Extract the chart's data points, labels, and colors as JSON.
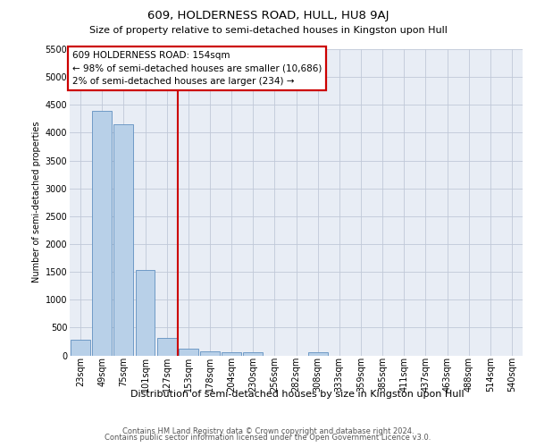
{
  "title": "609, HOLDERNESS ROAD, HULL, HU8 9AJ",
  "subtitle": "Size of property relative to semi-detached houses in Kingston upon Hull",
  "xlabel": "Distribution of semi-detached houses by size in Kingston upon Hull",
  "ylabel": "Number of semi-detached properties",
  "footer1": "Contains HM Land Registry data © Crown copyright and database right 2024.",
  "footer2": "Contains public sector information licensed under the Open Government Licence v3.0.",
  "annotation_title": "609 HOLDERNESS ROAD: 154sqm",
  "annotation_line1": "← 98% of semi-detached houses are smaller (10,686)",
  "annotation_line2": "2% of semi-detached houses are larger (234) →",
  "categories": [
    "23sqm",
    "49sqm",
    "75sqm",
    "101sqm",
    "127sqm",
    "153sqm",
    "178sqm",
    "204sqm",
    "230sqm",
    "256sqm",
    "282sqm",
    "308sqm",
    "333sqm",
    "359sqm",
    "385sqm",
    "411sqm",
    "437sqm",
    "463sqm",
    "488sqm",
    "514sqm",
    "540sqm"
  ],
  "values": [
    280,
    4400,
    4150,
    1530,
    310,
    120,
    70,
    60,
    58,
    0,
    0,
    62,
    0,
    0,
    0,
    0,
    0,
    0,
    0,
    0,
    0
  ],
  "bar_color": "#b8d0e8",
  "bar_edge_color": "#6090c0",
  "marker_index": 5,
  "marker_color": "#cc0000",
  "ylim_max": 5500,
  "ytick_step": 500,
  "bg_color": "#e8edf5",
  "grid_color": "#c0c8d8",
  "annotation_box_color": "#cc0000",
  "title_fontsize": 9.5,
  "subtitle_fontsize": 8.0,
  "ylabel_fontsize": 7.0,
  "xlabel_fontsize": 8.0,
  "tick_fontsize": 7.0,
  "footer_fontsize": 6.0,
  "annot_fontsize": 7.5
}
